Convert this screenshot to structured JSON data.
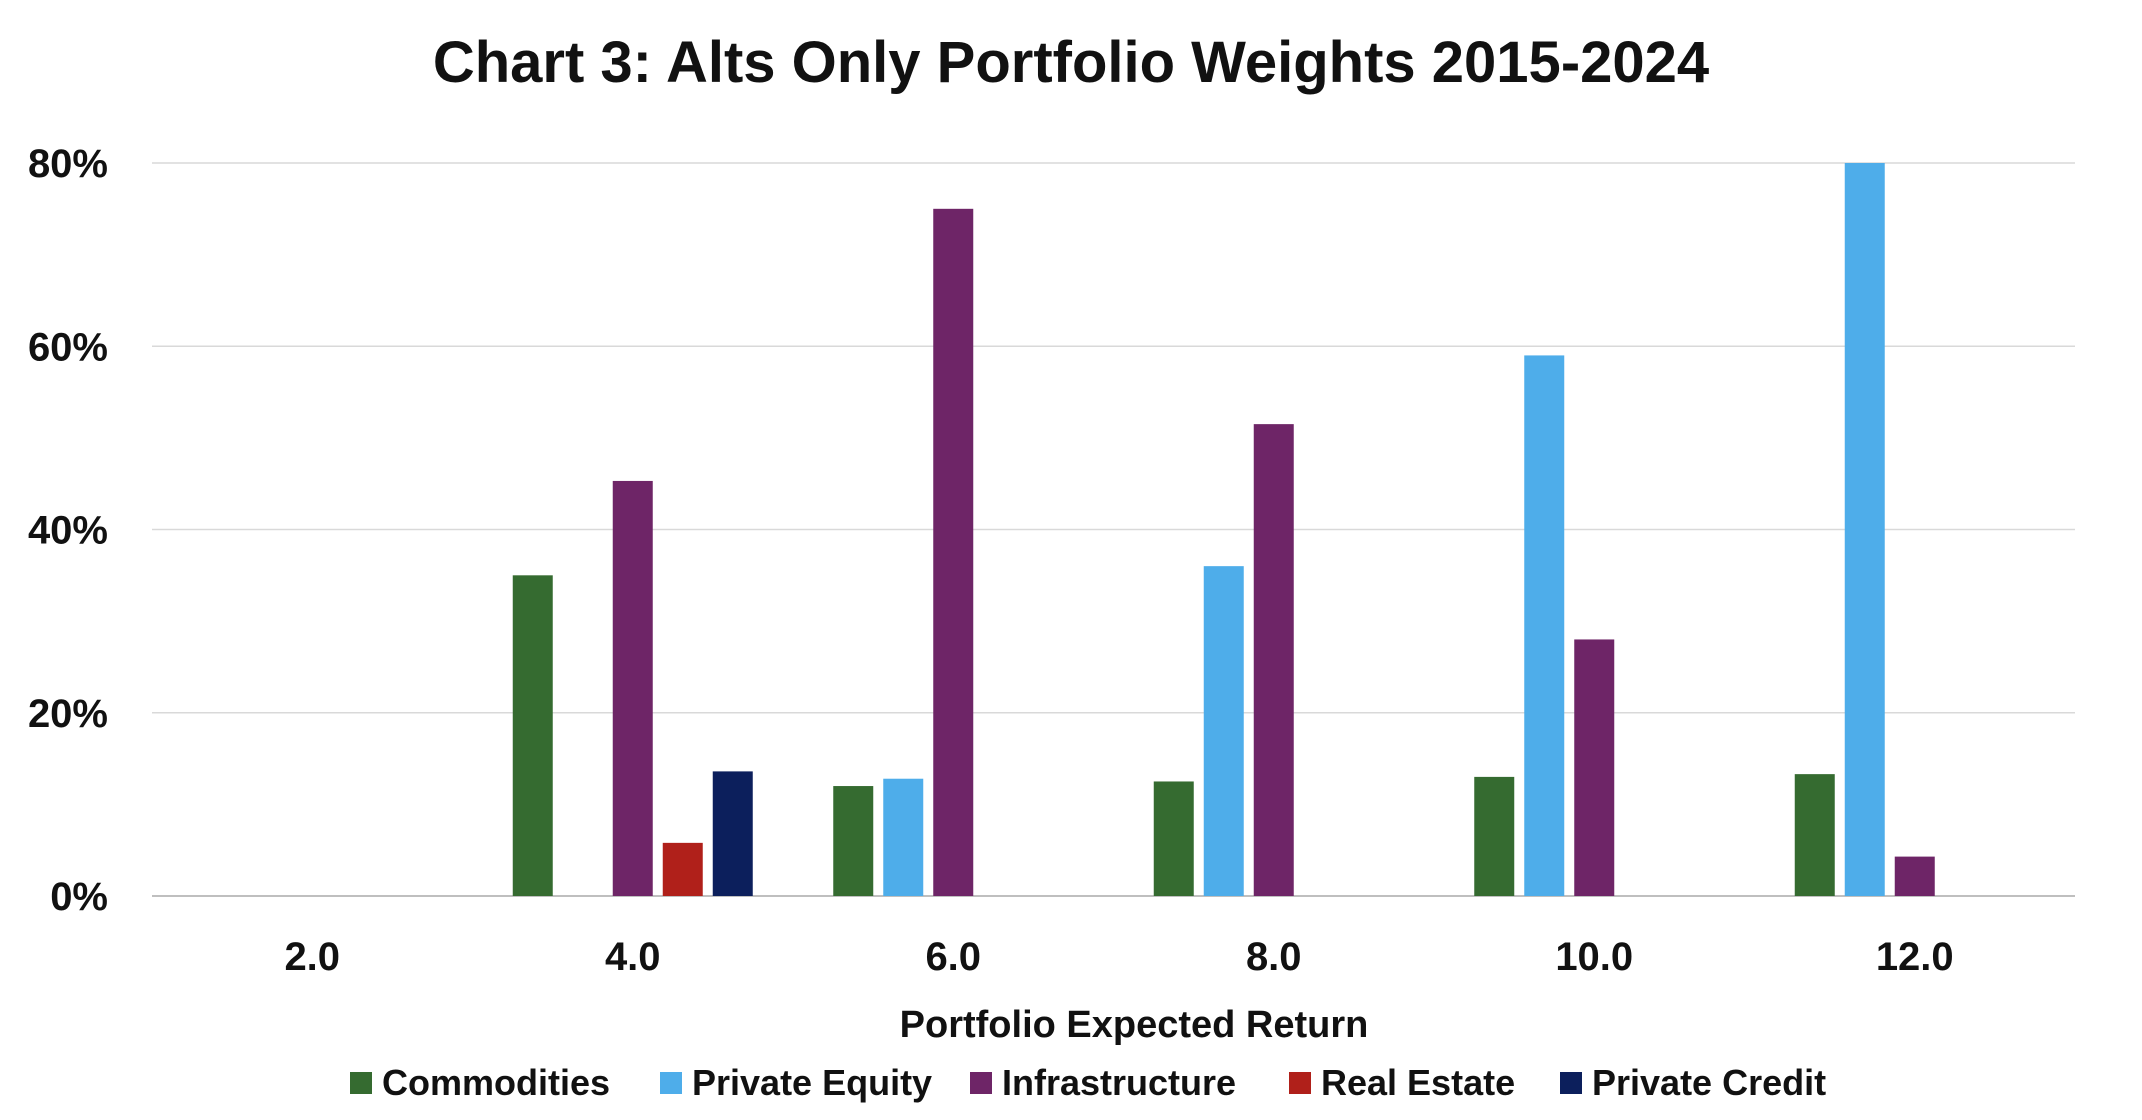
{
  "chart_data": {
    "type": "bar",
    "title": "Chart 3: Alts Only Portfolio Weights 2015-2024",
    "xlabel": "Portfolio Expected Return",
    "ylabel": "",
    "categories": [
      "2.0",
      "4.0",
      "6.0",
      "8.0",
      "10.0",
      "12.0"
    ],
    "ylim": [
      0,
      80
    ],
    "yticks": [
      "0%",
      "20%",
      "40%",
      "60%",
      "80%"
    ],
    "grid": true,
    "legend_position": "bottom",
    "series": [
      {
        "name": "Commodities",
        "color": "#356b30",
        "values": [
          0,
          35,
          12,
          12.5,
          13,
          13.3
        ]
      },
      {
        "name": "Private Equity",
        "color": "#4eadea",
        "values": [
          0,
          0,
          12.8,
          36,
          59,
          80
        ]
      },
      {
        "name": "Infrastructure",
        "color": "#6e2567",
        "values": [
          0,
          45.3,
          75,
          51.5,
          28,
          4.3
        ]
      },
      {
        "name": "Real Estate",
        "color": "#b0201a",
        "values": [
          0,
          5.8,
          0,
          0,
          0,
          0
        ]
      },
      {
        "name": "Private Credit",
        "color": "#0c1f5c",
        "values": [
          0,
          13.6,
          0,
          0,
          0,
          0
        ]
      }
    ]
  }
}
